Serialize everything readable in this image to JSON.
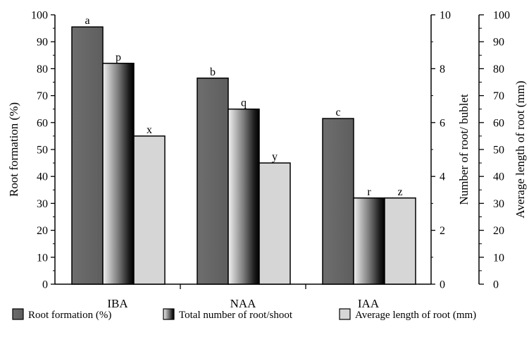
{
  "chart_data": {
    "type": "bar",
    "categories": [
      "IBA",
      "NAA",
      "IAA"
    ],
    "series": [
      {
        "name": "Root formation (%)",
        "axis": "left",
        "values": [
          95.5,
          76.5,
          61.5
        ],
        "letters": [
          "a",
          "b",
          "c"
        ],
        "fill": "gradient-dark"
      },
      {
        "name": "Total number of root/shoot",
        "axis": "middle",
        "values": [
          8.2,
          6.5,
          3.2
        ],
        "letters": [
          "p",
          "q",
          "r"
        ],
        "fill": "gradient-black"
      },
      {
        "name": "Average length of root (mm)",
        "axis": "right",
        "values": [
          55,
          45,
          32
        ],
        "letters": [
          "x",
          "y",
          "z"
        ],
        "fill": "#d6d6d6"
      }
    ],
    "axes": {
      "left": {
        "label": "Root formation (%)",
        "min": 0,
        "max": 100,
        "ticks": [
          "0",
          "10",
          "20",
          "30",
          "40",
          "50",
          "60",
          "70",
          "80",
          "90",
          "100"
        ]
      },
      "middle": {
        "label": "Number of root/ bublet",
        "min": 0,
        "max": 10,
        "ticks": [
          "0",
          "2",
          "4",
          "6",
          "8",
          "10"
        ]
      },
      "right": {
        "label": "Average length of root (mm)",
        "min": 0,
        "max": 100,
        "ticks": [
          "0",
          "10",
          "20",
          "30",
          "40",
          "50",
          "60",
          "70",
          "80",
          "90",
          "100"
        ]
      }
    },
    "grid": false,
    "legend_position": "bottom"
  },
  "colors": {
    "bar_dark": "#6b6b6b",
    "bar_light": "#d6d6d6",
    "outline": "#000000"
  }
}
